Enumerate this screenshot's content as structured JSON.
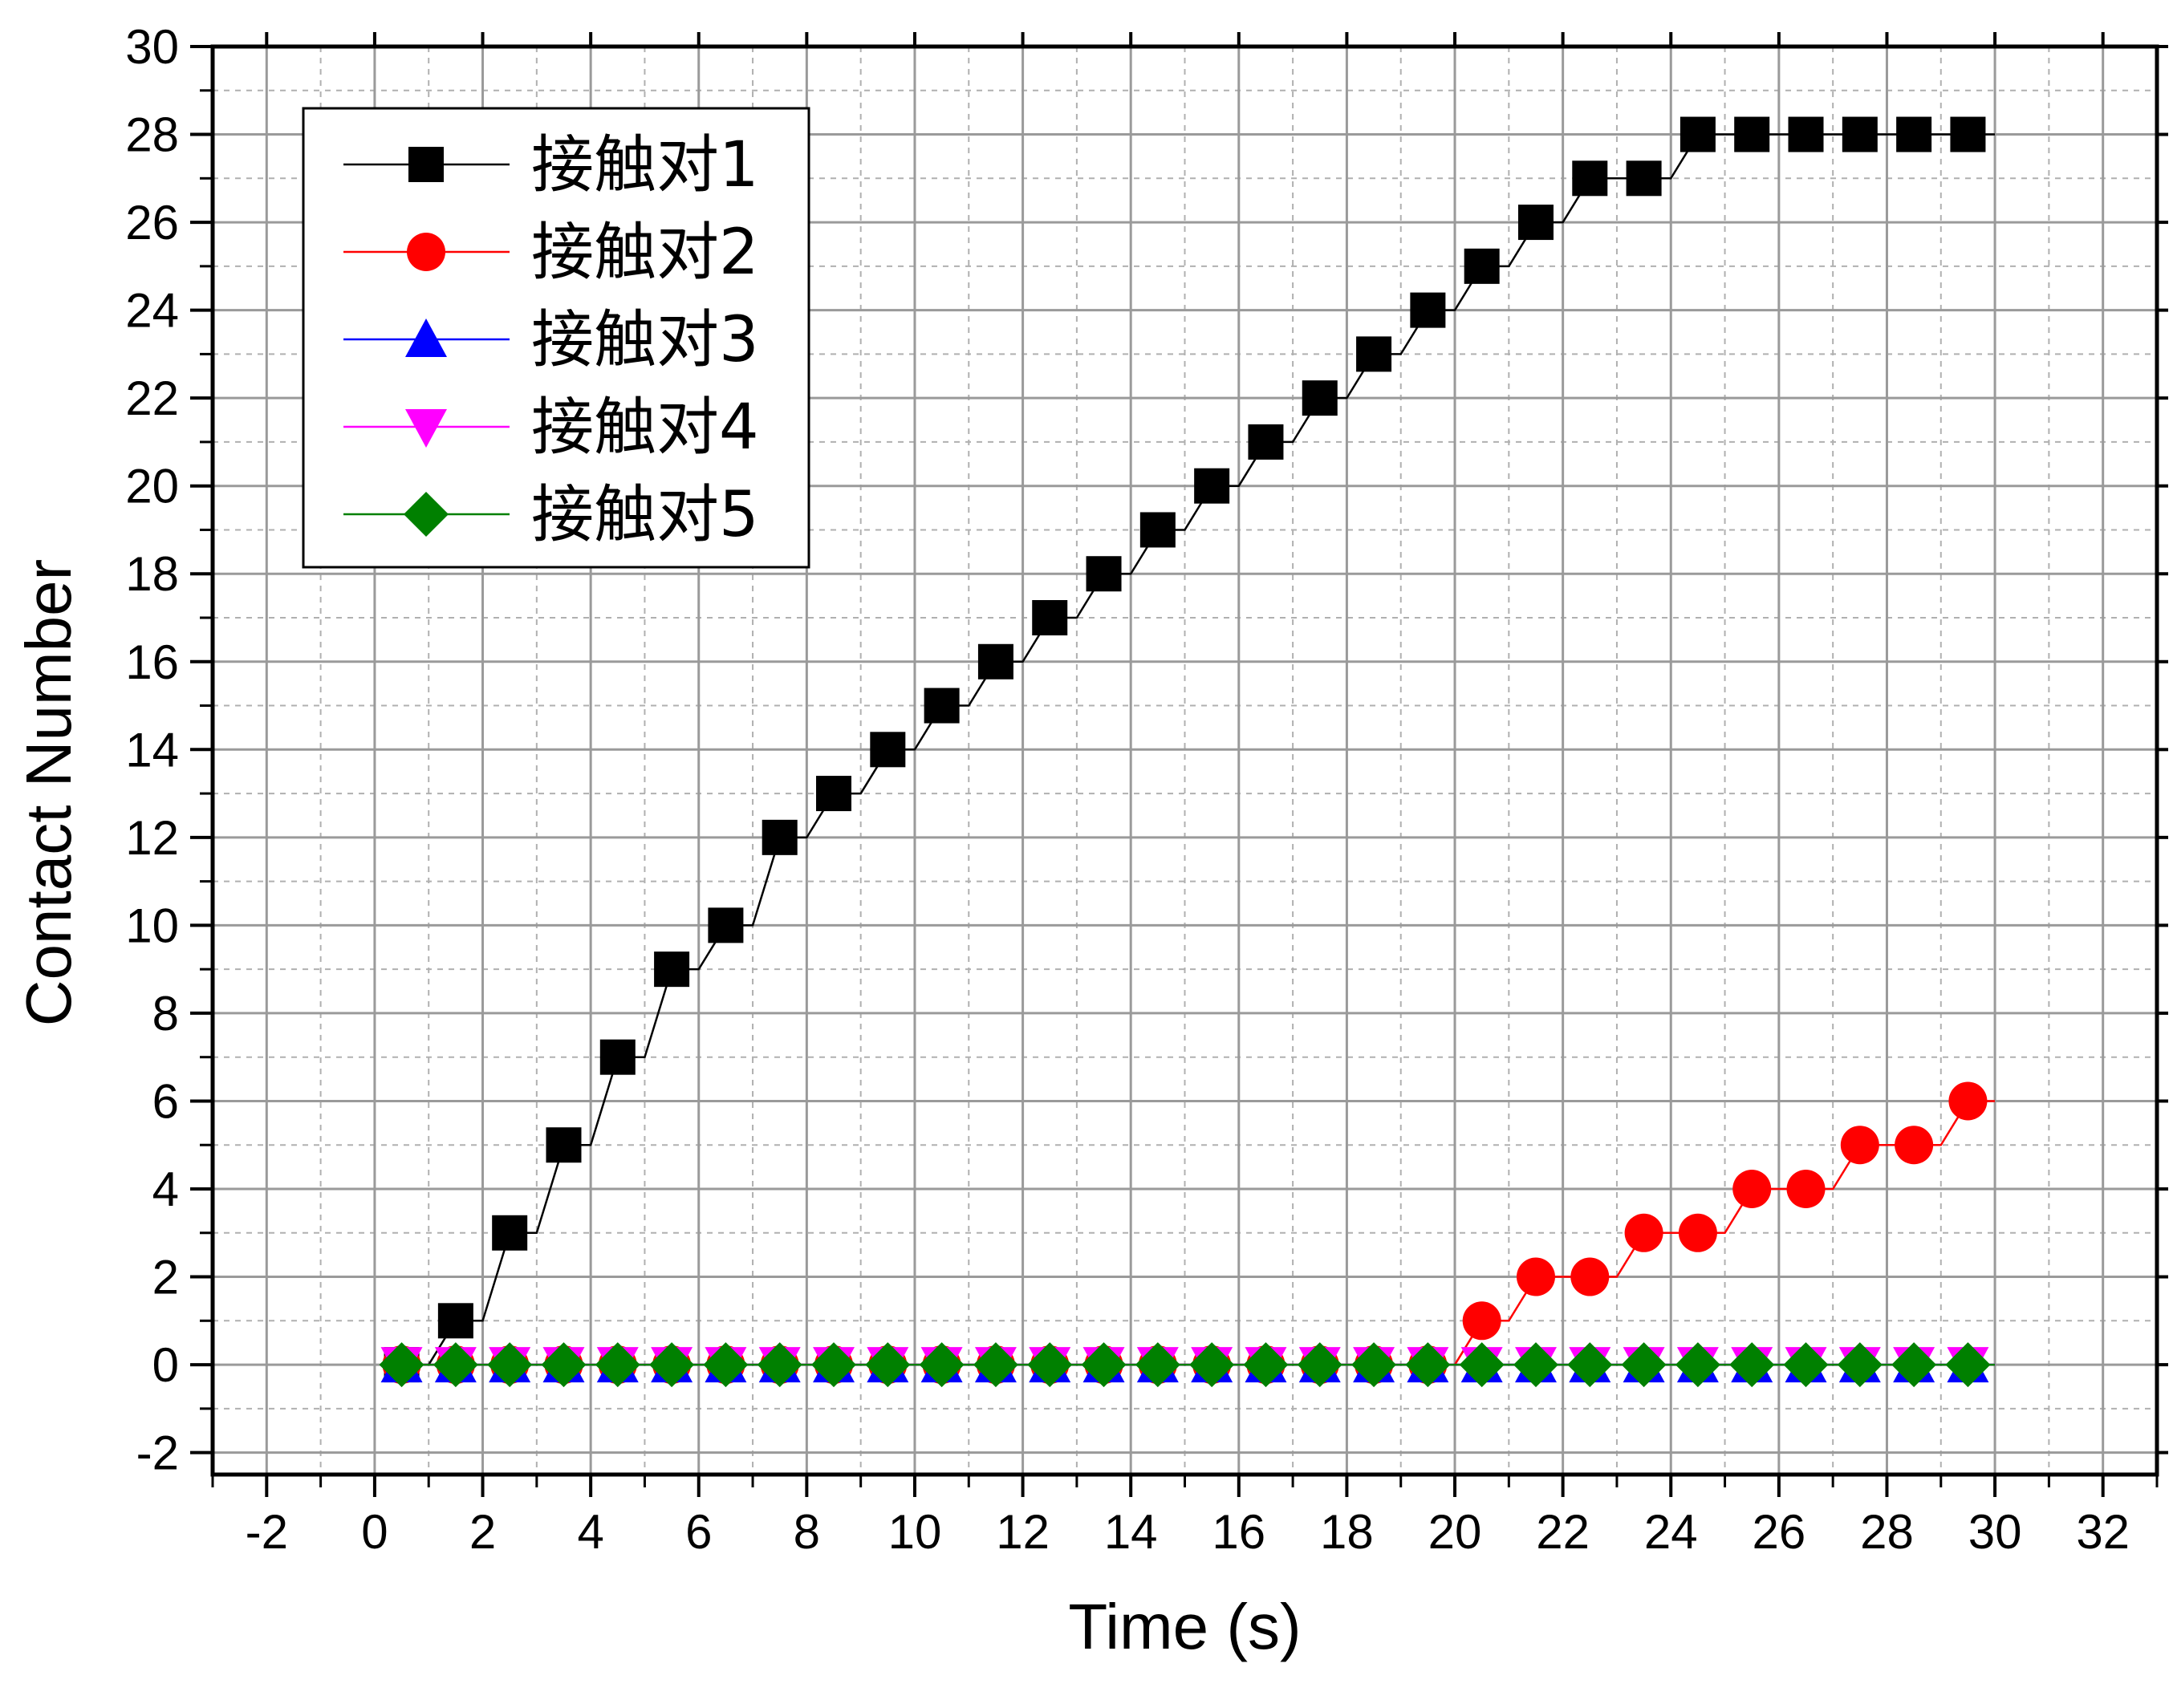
{
  "chart_data": {
    "type": "line",
    "title": "",
    "xlabel": "Time (s)",
    "ylabel": "Contact Number",
    "xlim": [
      -3,
      33
    ],
    "ylim": [
      -2.5,
      30
    ],
    "xticks": [
      -2,
      0,
      2,
      4,
      6,
      8,
      10,
      12,
      14,
      16,
      18,
      20,
      22,
      24,
      26,
      28,
      30,
      32
    ],
    "yticks": [
      -2,
      0,
      2,
      4,
      6,
      8,
      10,
      12,
      14,
      16,
      18,
      20,
      22,
      24,
      26,
      28,
      30
    ],
    "grid": true,
    "legend_position": "top-left",
    "x": [
      0.5,
      1.5,
      2.5,
      3.5,
      4.5,
      5.5,
      6.5,
      7.5,
      8.5,
      9.5,
      10.5,
      11.5,
      12.5,
      13.5,
      14.5,
      15.5,
      16.5,
      17.5,
      18.5,
      19.5,
      20.5,
      21.5,
      22.5,
      23.5,
      24.5,
      25.5,
      26.5,
      27.5,
      28.5,
      29.5
    ],
    "series": [
      {
        "name": "接触对1",
        "color": "#000000",
        "marker": "square",
        "values": [
          0,
          1,
          3,
          5,
          7,
          9,
          10,
          12,
          13,
          14,
          15,
          16,
          17,
          18,
          19,
          20,
          21,
          22,
          23,
          24,
          25,
          26,
          27,
          27,
          28,
          28,
          28,
          28,
          28,
          28
        ]
      },
      {
        "name": "接触对2",
        "color": "#ff0000",
        "marker": "circle",
        "values": [
          0,
          0,
          0,
          0,
          0,
          0,
          0,
          0,
          0,
          0,
          0,
          0,
          0,
          0,
          0,
          0,
          0,
          0,
          0,
          0,
          1,
          2,
          2,
          3,
          3,
          4,
          4,
          5,
          5,
          6
        ]
      },
      {
        "name": "接触对3",
        "color": "#0000ff",
        "marker": "triangle-up",
        "values": [
          0,
          0,
          0,
          0,
          0,
          0,
          0,
          0,
          0,
          0,
          0,
          0,
          0,
          0,
          0,
          0,
          0,
          0,
          0,
          0,
          0,
          0,
          0,
          0,
          0,
          0,
          0,
          0,
          0,
          0
        ]
      },
      {
        "name": "接触对4",
        "color": "#ff00ff",
        "marker": "triangle-down",
        "values": [
          0,
          0,
          0,
          0,
          0,
          0,
          0,
          0,
          0,
          0,
          0,
          0,
          0,
          0,
          0,
          0,
          0,
          0,
          0,
          0,
          0,
          0,
          0,
          0,
          0,
          0,
          0,
          0,
          0,
          0
        ]
      },
      {
        "name": "接触对5",
        "color": "#008000",
        "marker": "diamond",
        "values": [
          0,
          0,
          0,
          0,
          0,
          0,
          0,
          0,
          0,
          0,
          0,
          0,
          0,
          0,
          0,
          0,
          0,
          0,
          0,
          0,
          0,
          0,
          0,
          0,
          0,
          0,
          0,
          0,
          0,
          0
        ]
      }
    ]
  }
}
